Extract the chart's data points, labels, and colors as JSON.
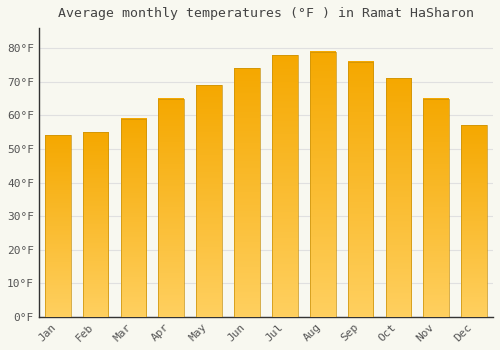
{
  "title": "Average monthly temperatures (°F ) in Ramat HaSharon",
  "months": [
    "Jan",
    "Feb",
    "Mar",
    "Apr",
    "May",
    "Jun",
    "Jul",
    "Aug",
    "Sep",
    "Oct",
    "Nov",
    "Dec"
  ],
  "values": [
    54,
    55,
    59,
    65,
    69,
    74,
    78,
    79,
    76,
    71,
    65,
    57
  ],
  "bar_color_top": "#F5A800",
  "bar_color_bottom": "#FFD060",
  "yticks": [
    0,
    10,
    20,
    30,
    40,
    50,
    60,
    70,
    80
  ],
  "ytick_labels": [
    "0°F",
    "10°F",
    "20°F",
    "30°F",
    "40°F",
    "50°F",
    "60°F",
    "70°F",
    "80°F"
  ],
  "ylim": [
    0,
    86
  ],
  "background_color": "#F8F8F0",
  "plot_bg_color": "#F8F8F0",
  "grid_color": "#E0E0E0",
  "title_fontsize": 9.5,
  "tick_fontsize": 8,
  "spine_color": "#333333",
  "tick_color": "#555555"
}
